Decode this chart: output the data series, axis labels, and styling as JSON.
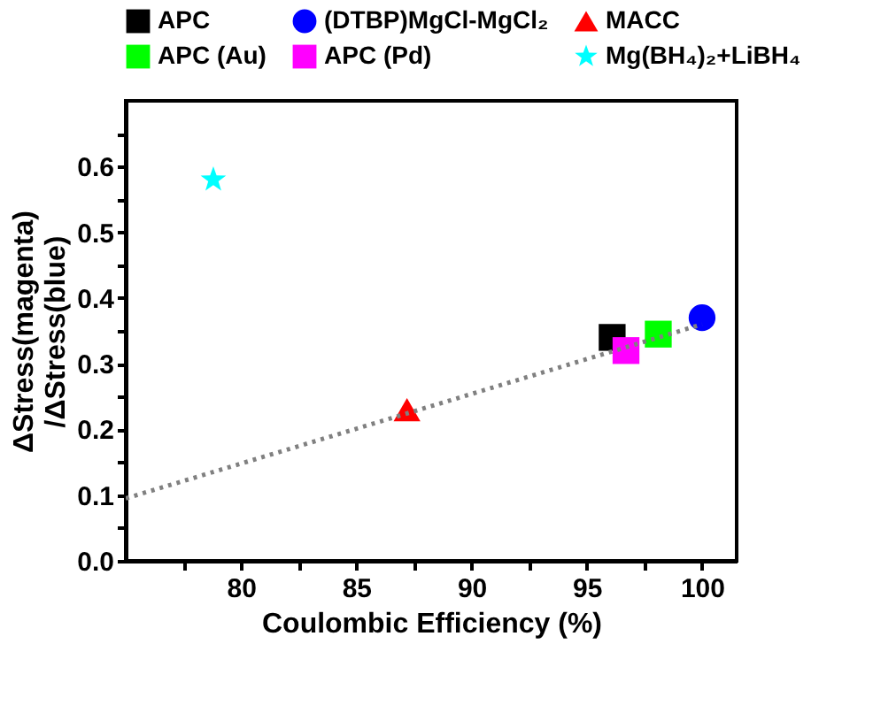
{
  "chart_data": {
    "type": "scatter",
    "xlabel": "Coulombic Efficiency (%)",
    "ylabel": "ΔStress(magenta)\n/ΔStress(blue)",
    "xlim": [
      75,
      101.5
    ],
    "ylim": [
      0,
      0.7
    ],
    "xticks": [
      {
        "value": 77.5,
        "label": null
      },
      80,
      {
        "value": 82.5,
        "label": null
      },
      85,
      {
        "value": 87.5,
        "label": null
      },
      90,
      {
        "value": 92.5,
        "label": null
      },
      95,
      {
        "value": 97.5,
        "label": null
      },
      100
    ],
    "yticks": [
      {
        "value": 0,
        "label": "0.0"
      },
      {
        "value": 0.05,
        "label": null
      },
      0.1,
      {
        "value": 0.15,
        "label": null
      },
      0.2,
      {
        "value": 0.25,
        "label": null
      },
      0.3,
      {
        "value": 0.35,
        "label": null
      },
      0.4,
      {
        "value": 0.45,
        "label": null
      },
      0.5,
      {
        "value": 0.55,
        "label": null
      },
      0.6,
      {
        "value": 0.65,
        "label": null
      }
    ],
    "grid": false,
    "legend": "top",
    "series": [
      {
        "name": "APC",
        "color": "#000000",
        "marker": "square",
        "x": [
          96.1
        ],
        "values": [
          0.34
        ]
      },
      {
        "name": "(DTBP)MgCl-MgCl₂",
        "color": "#0000ff",
        "marker": "circle",
        "x": [
          100
        ],
        "values": [
          0.37
        ]
      },
      {
        "name": "MACC",
        "color": "#ff0000",
        "marker": "triangle",
        "x": [
          87.2
        ],
        "values": [
          0.23
        ]
      },
      {
        "name": "APC (Au)",
        "color": "#00ff00",
        "marker": "square",
        "x": [
          98.1
        ],
        "values": [
          0.345
        ]
      },
      {
        "name": "APC (Pd)",
        "color": "#ff00ff",
        "marker": "square",
        "x": [
          96.7
        ],
        "values": [
          0.32
        ]
      },
      {
        "name": "Mg(BH₄)₂+LiBH₄",
        "color": "#00ffff",
        "marker": "star",
        "x": [
          78.8
        ],
        "values": [
          0.58
        ]
      },
      {
        "type": "line",
        "color": "#808080",
        "line_style": "dotted",
        "marker": "none",
        "x": [
          75,
          100
        ],
        "values": [
          0.095,
          0.36
        ]
      }
    ]
  }
}
